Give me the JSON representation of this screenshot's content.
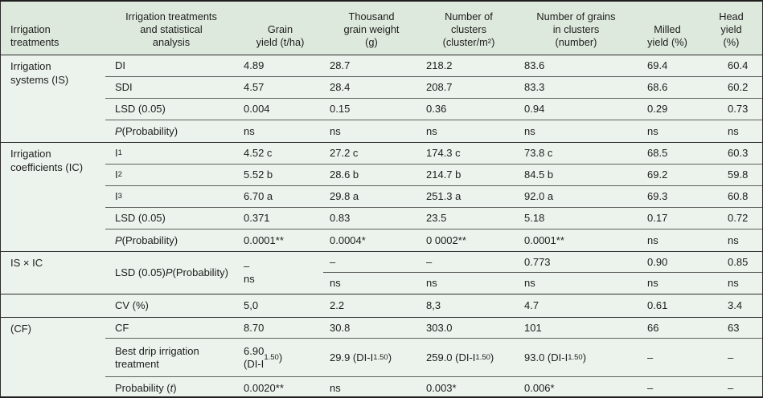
{
  "colors": {
    "header_bg": "#dee9dd",
    "body_bg": "#ecf3ec",
    "border_dark": "#1f1f1f",
    "line_section": "#2a2a2a",
    "line_inner": "#5f5f5f",
    "text": "#1d1d1d"
  },
  "table": {
    "columns": [
      {
        "id": "treatments",
        "label": "Irrigation\ntreatments"
      },
      {
        "id": "analysis",
        "label": "Irrigation treatments\nand statistical\nanalysis"
      },
      {
        "id": "grain_yield",
        "label": "Grain\nyield (t/ha)"
      },
      {
        "id": "thousand_grain_weight",
        "label": "Thousand\ngrain weight\n(g)"
      },
      {
        "id": "number_of_clusters",
        "label": "Number of\nclusters\n(cluster/m²)"
      },
      {
        "id": "grains_in_clusters",
        "label": "Number of grains\nin clusters\n(number)"
      },
      {
        "id": "milled_yield",
        "label": "Milled\nyield (%)"
      },
      {
        "id": "head_yield",
        "label": "Head\nyield\n(%)"
      }
    ],
    "sections": [
      {
        "group": "Irrigation\nsystems (IS)",
        "rows": [
          {
            "label": "DI",
            "values": [
              "4.89",
              "28.7",
              "218.2",
              "83.6",
              "69.4",
              "60.4"
            ]
          },
          {
            "label": "SDI",
            "values": [
              "4.57",
              "28.4",
              "208.7",
              "83.3",
              "68.6",
              "60.2"
            ]
          },
          {
            "label": "LSD (0.05)",
            "values": [
              "0.004",
              "0.15",
              "0.36",
              "0.94",
              "0.29",
              "0.73"
            ]
          },
          {
            "label": "_P_ (Probability)",
            "values": [
              "ns",
              "ns",
              "ns",
              "ns",
              "ns",
              "ns"
            ]
          }
        ]
      },
      {
        "group": "Irrigation\ncoefficients (IC)",
        "rows": [
          {
            "label": "I~1~",
            "values": [
              "4.52 c",
              "27.2 c",
              "174.3 c",
              "73.8 c",
              "68.5",
              "60.3"
            ]
          },
          {
            "label": "I~2~",
            "values": [
              "5.52 b",
              "28.6 b",
              "214.7 b",
              "84.5 b",
              "69.2",
              "59.8"
            ]
          },
          {
            "label": "I~3~",
            "values": [
              "6.70 a",
              "29.8 a",
              "251.3 a",
              "92.0 a",
              "69.3",
              "60.8"
            ]
          },
          {
            "label": "LSD (0.05)",
            "values": [
              "0.371",
              "0.83",
              "23.5",
              "5.18",
              "0.17",
              "0.72"
            ]
          },
          {
            "label": "_P_ (Probability)",
            "values": [
              "0.0001**",
              "0.0004*",
              "0 0002**",
              "0.0001**",
              "ns",
              "ns"
            ]
          }
        ]
      }
    ],
    "interaction": {
      "group": "IS × IC",
      "label": "LSD (0.05)\n_P_ (Probability)",
      "grain_cell": "–\nns",
      "top_values": [
        "–",
        "–",
        "0.773",
        "0.90",
        "0.85"
      ],
      "bottom_values": [
        "ns",
        "ns",
        "ns",
        "ns",
        "ns"
      ],
      "cv_row": {
        "label": "CV (%)",
        "values": [
          "5,0",
          "2.2",
          "8,3",
          "4.7",
          "0.61",
          "3.4"
        ]
      }
    },
    "cf_section": {
      "group": "(CF)",
      "rows": [
        {
          "label": "CF",
          "values": [
            "8.70",
            "30.8",
            "303.0",
            "101",
            "66",
            "63"
          ]
        },
        {
          "label": "Best drip irrigation\ntreatment",
          "values": [
            "6.90\n(DI-I~1.50~)",
            "29.9 (DI-I~1.50~)",
            "259.0 (DI-I~1.50~)",
            "93.0 (DI-I~1.50~)",
            "–",
            "–"
          ]
        },
        {
          "label": "Probability (_t_)",
          "values": [
            "0.0020**",
            "ns",
            "0.003*",
            "0.006*",
            "–",
            "–"
          ]
        }
      ]
    }
  }
}
